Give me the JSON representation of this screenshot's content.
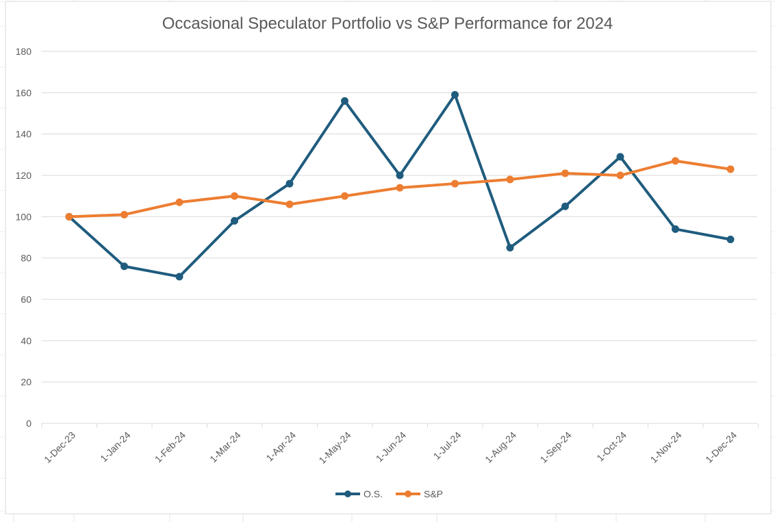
{
  "chart_data": {
    "type": "line",
    "title": "Occasional Speculator Portfolio vs S&P Performance for 2024",
    "xlabel": "",
    "ylabel": "",
    "categories": [
      "1-Dec-23",
      "1-Jan-24",
      "1-Feb-24",
      "1-Mar-24",
      "1-Apr-24",
      "1-May-24",
      "1-Jun-24",
      "1-Jul-24",
      "1-Aug-24",
      "1-Sep-24",
      "1-Oct-24",
      "1-Nov-24",
      "1-Dec-24"
    ],
    "ylim": [
      0,
      180
    ],
    "yticks": [
      0,
      20,
      40,
      60,
      80,
      100,
      120,
      140,
      160,
      180
    ],
    "grid": true,
    "legend_position": "bottom",
    "series": [
      {
        "name": "O.S.",
        "color": "#1f5c7e",
        "values": [
          100,
          76,
          71,
          98,
          116,
          156,
          120,
          159,
          85,
          105,
          129,
          94,
          89
        ]
      },
      {
        "name": "S&P",
        "color": "#ed7d31",
        "values": [
          100,
          101,
          107,
          110,
          106,
          110,
          114,
          116,
          118,
          121,
          120,
          127,
          123
        ]
      }
    ]
  }
}
